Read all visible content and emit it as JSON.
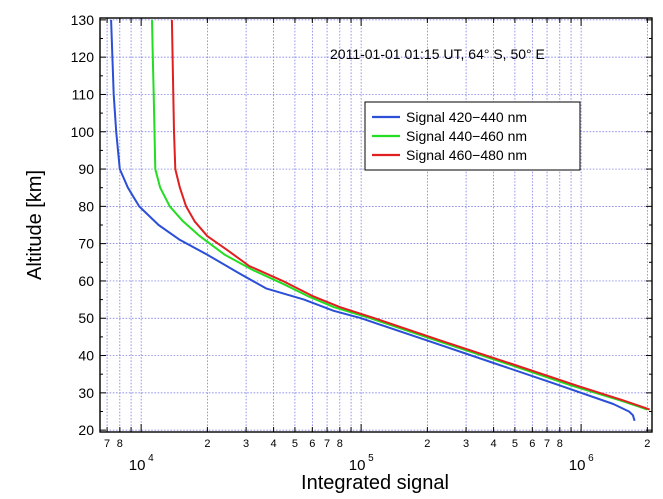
{
  "chart_data": {
    "type": "line",
    "title": "",
    "annotation": "2011-01-01 01:15 UT, 64° S, 50° E",
    "xlabel": "Integrated signal",
    "ylabel": "Altitude [km]",
    "xscale": "log",
    "xlim": [
      6500,
      2100000
    ],
    "ylim": [
      19.5,
      130.5
    ],
    "grid": true,
    "legend_position": "upper-right",
    "yticks": [
      20,
      30,
      40,
      50,
      60,
      70,
      80,
      90,
      100,
      110,
      120,
      130
    ],
    "x_decades": [
      {
        "base": "10",
        "exp": "4",
        "value": 10000
      },
      {
        "base": "10",
        "exp": "5",
        "value": 100000
      },
      {
        "base": "10",
        "exp": "6",
        "value": 1000000
      }
    ],
    "x_minor_ticks": [
      {
        "label": "7",
        "value": 7000
      },
      {
        "label": "8",
        "value": 8000
      },
      {
        "label": "2",
        "value": 20000
      },
      {
        "label": "3",
        "value": 30000
      },
      {
        "label": "4",
        "value": 40000
      },
      {
        "label": "5",
        "value": 50000
      },
      {
        "label": "6",
        "value": 60000
      },
      {
        "label": "7",
        "value": 70000
      },
      {
        "label": "8",
        "value": 80000
      },
      {
        "label": "2",
        "value": 200000
      },
      {
        "label": "3",
        "value": 300000
      },
      {
        "label": "4",
        "value": 400000
      },
      {
        "label": "5",
        "value": 500000
      },
      {
        "label": "6",
        "value": 600000
      },
      {
        "label": "7",
        "value": 700000
      },
      {
        "label": "8",
        "value": 800000
      },
      {
        "label": "2",
        "value": 2000000
      }
    ],
    "x_unlabeled_ticks": [
      9000,
      90000,
      900000
    ],
    "series": [
      {
        "name": "Signal 420−440 nm",
        "color": "#2b4fd6",
        "points": [
          [
            7300,
            130
          ],
          [
            7400,
            120
          ],
          [
            7500,
            110
          ],
          [
            7700,
            100
          ],
          [
            8000,
            90
          ],
          [
            8700,
            85
          ],
          [
            9800,
            80
          ],
          [
            12000,
            75
          ],
          [
            15000,
            71
          ],
          [
            20000,
            67
          ],
          [
            28000,
            62
          ],
          [
            37000,
            58
          ],
          [
            55000,
            55
          ],
          [
            75000,
            52
          ],
          [
            100000,
            50
          ],
          [
            200000,
            44
          ],
          [
            400000,
            38
          ],
          [
            800000,
            32
          ],
          [
            1400000,
            27
          ],
          [
            1650000,
            25
          ],
          [
            1720000,
            24
          ],
          [
            1750000,
            22.5
          ]
        ]
      },
      {
        "name": "Signal 440−460 nm",
        "color": "#22dd22",
        "points": [
          [
            11200,
            130
          ],
          [
            11300,
            120
          ],
          [
            11400,
            110
          ],
          [
            11500,
            100
          ],
          [
            11600,
            90
          ],
          [
            12200,
            85
          ],
          [
            13500,
            80
          ],
          [
            15500,
            76
          ],
          [
            18500,
            72
          ],
          [
            24000,
            67
          ],
          [
            32000,
            63
          ],
          [
            45000,
            59
          ],
          [
            57000,
            56
          ],
          [
            75000,
            53
          ],
          [
            110000,
            50
          ],
          [
            220000,
            44
          ],
          [
            450000,
            38
          ],
          [
            900000,
            32
          ],
          [
            1500000,
            28
          ],
          [
            1900000,
            26
          ],
          [
            2000000,
            25.5
          ]
        ]
      },
      {
        "name": "Signal 460−480 nm",
        "color": "#e02020",
        "points": [
          [
            13800,
            130
          ],
          [
            13900,
            120
          ],
          [
            14000,
            110
          ],
          [
            14100,
            100
          ],
          [
            14300,
            90
          ],
          [
            15000,
            85
          ],
          [
            16000,
            80
          ],
          [
            17500,
            76
          ],
          [
            20000,
            72
          ],
          [
            25000,
            68
          ],
          [
            31000,
            64
          ],
          [
            44000,
            60
          ],
          [
            60000,
            56
          ],
          [
            80000,
            53
          ],
          [
            115000,
            50
          ],
          [
            230000,
            44
          ],
          [
            470000,
            38
          ],
          [
            950000,
            32
          ],
          [
            1550000,
            28
          ],
          [
            1950000,
            26
          ],
          [
            2050000,
            25.5
          ]
        ]
      }
    ]
  }
}
